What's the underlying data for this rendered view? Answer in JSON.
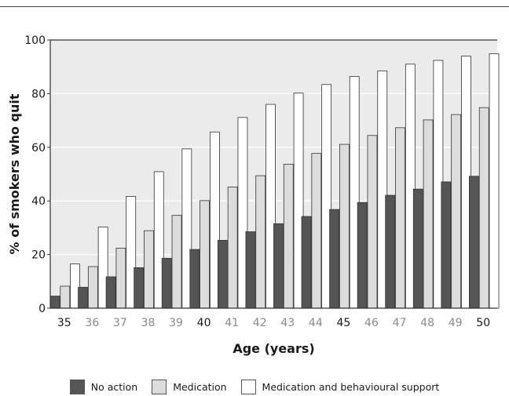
{
  "chart_data": {
    "type": "bar",
    "title": "",
    "xlabel": "Age (years)",
    "ylabel": "% of smokers who quit",
    "ylim": [
      0,
      100
    ],
    "yticks": [
      "0",
      "20",
      "40",
      "60",
      "80",
      "100"
    ],
    "grid": true,
    "legend_position": "bottom",
    "categories": [
      "35",
      "36",
      "37",
      "38",
      "39",
      "40",
      "41",
      "42",
      "43",
      "44",
      "45",
      "46",
      "47",
      "48",
      "49",
      "50"
    ],
    "category_label_colors": [
      "#1a1a1a",
      "#8a8a8a",
      "#8a8a8a",
      "#8a8a8a",
      "#8a8a8a",
      "#1a1a1a",
      "#8a8a8a",
      "#8a8a8a",
      "#8a8a8a",
      "#8a8a8a",
      "#1a1a1a",
      "#8a8a8a",
      "#8a8a8a",
      "#8a8a8a",
      "#8a8a8a",
      "#1a1a1a"
    ],
    "series": [
      {
        "name": "No action",
        "color": "#555555",
        "values": [
          4.5,
          7.8,
          11.7,
          15.1,
          18.6,
          21.9,
          25.3,
          28.5,
          31.5,
          34.2,
          36.8,
          39.4,
          42.1,
          44.4,
          47.1,
          49.2
        ]
      },
      {
        "name": "Medication",
        "color": "#dcdcdc",
        "values": [
          8.2,
          15.5,
          22.4,
          28.9,
          34.6,
          40.1,
          45.2,
          49.4,
          53.7,
          57.7,
          61.1,
          64.4,
          67.3,
          70.2,
          72.2,
          74.8
        ]
      },
      {
        "name": "Medication and behavioural support",
        "color": "#ffffff",
        "values": [
          16.5,
          30.3,
          41.7,
          50.9,
          59.4,
          65.7,
          71.1,
          76.0,
          80.2,
          83.4,
          86.4,
          88.5,
          91.0,
          92.4,
          94.0,
          94.9
        ]
      }
    ]
  },
  "colors": {
    "plot_background": "#ebebeb",
    "gridline": "#ffffff",
    "axis": "#333333"
  }
}
